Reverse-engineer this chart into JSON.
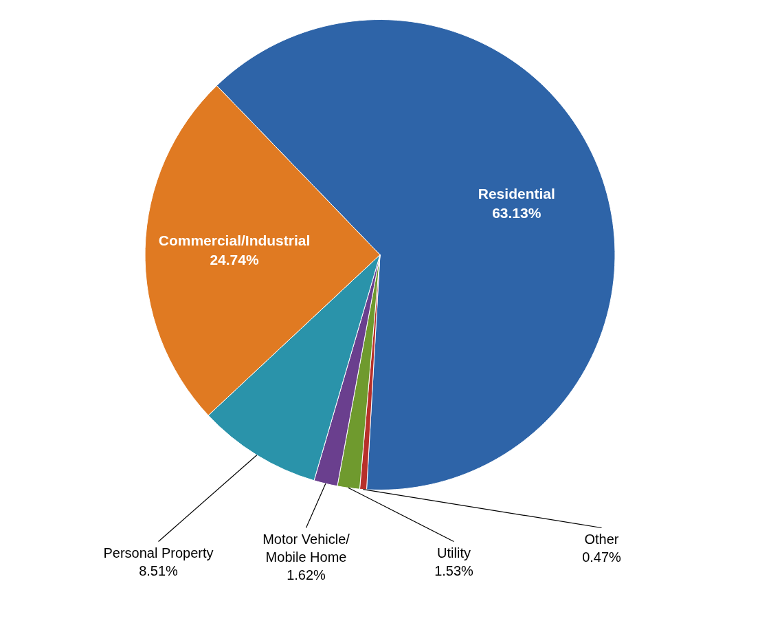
{
  "chart_data": {
    "type": "pie",
    "categories": [
      "Residential",
      "Other",
      "Utility",
      "Motor Vehicle/\nMobile Home",
      "Personal Property",
      "Commercial/Industrial"
    ],
    "values": [
      63.13,
      0.47,
      1.53,
      1.62,
      8.51,
      24.74
    ],
    "value_labels": [
      "63.13%",
      "0.47%",
      "1.53%",
      "1.62%",
      "8.51%",
      "24.74%"
    ],
    "colors": [
      "#2e64a8",
      "#b8302a",
      "#6f9a2e",
      "#6a3f8e",
      "#2a93aa",
      "#e07a22"
    ],
    "legend": false
  }
}
